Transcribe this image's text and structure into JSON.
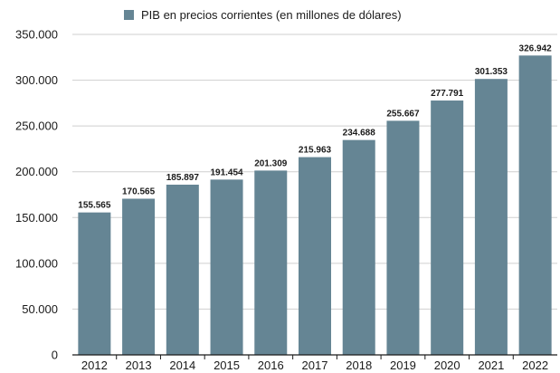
{
  "chart_data": {
    "type": "bar",
    "categories": [
      "2012",
      "2013",
      "2014",
      "2015",
      "2016",
      "2017",
      "2018",
      "2019",
      "2020",
      "2021",
      "2022"
    ],
    "series": [
      {
        "name": "PIB en precios corrientes (en millones de dólares)",
        "values": [
          155565,
          170565,
          185897,
          191454,
          201309,
          215963,
          234688,
          255667,
          277791,
          301353,
          326942
        ],
        "labels": [
          "155.565",
          "170.565",
          "185.897",
          "191.454",
          "201.309",
          "215.963",
          "234.688",
          "255.667",
          "277.791",
          "301.353",
          "326.942"
        ],
        "color": "#658594"
      }
    ],
    "yticks": [
      {
        "value": 0,
        "label": "0"
      },
      {
        "value": 50000,
        "label": "50.000"
      },
      {
        "value": 100000,
        "label": "100.000"
      },
      {
        "value": 150000,
        "label": "150.000"
      },
      {
        "value": 200000,
        "label": "200.000"
      },
      {
        "value": 250000,
        "label": "250.000"
      },
      {
        "value": 300000,
        "label": "300.000"
      },
      {
        "value": 350000,
        "label": "350.000"
      }
    ],
    "ylim": [
      0,
      350000
    ],
    "grid": true,
    "legend_position": "top-center",
    "colors": {
      "bar": "#658594",
      "grid": "#cfcfcf",
      "axis": "#1a1a1a"
    }
  }
}
